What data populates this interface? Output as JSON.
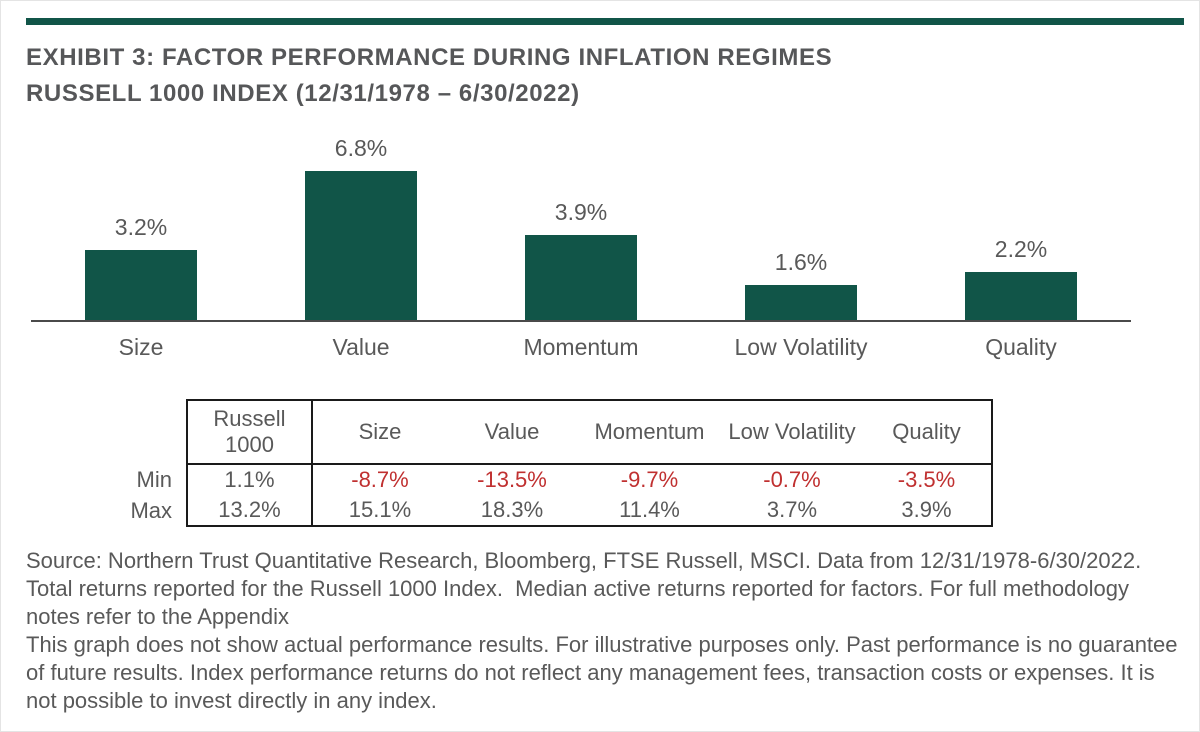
{
  "header": {
    "line1": "EXHIBIT 3: FACTOR PERFORMANCE DURING INFLATION REGIMES",
    "line2": "RUSSELL 1000 INDEX (12/31/1978 – 6/30/2022)"
  },
  "colors": {
    "accent_green": "#115548",
    "text_gray": "#595959",
    "negative_red": "#c03030"
  },
  "chart_data": [
    {
      "type": "bar",
      "title": "Factor performance during inflation regimes, Russell 1000 Index (12/31/1978 – 6/30/2022)",
      "categories": [
        "Size",
        "Value",
        "Momentum",
        "Low Volatility",
        "Quality"
      ],
      "values": [
        3.2,
        6.8,
        3.9,
        1.6,
        2.2
      ],
      "value_labels": [
        "3.2%",
        "6.8%",
        "3.9%",
        "1.6%",
        "2.2%"
      ],
      "xlabel": "",
      "ylabel": "",
      "ylim": [
        0,
        8.7
      ],
      "grid": false,
      "legend": false,
      "bar_color": "#115548"
    },
    {
      "type": "table",
      "columns": [
        "Russell 1000",
        "Size",
        "Value",
        "Momentum",
        "Low Volatility",
        "Quality"
      ],
      "row_labels": [
        "Min",
        "Max"
      ],
      "min": [
        "1.1%",
        "-8.7%",
        "-13.5%",
        "-9.7%",
        "-0.7%",
        "-3.5%"
      ],
      "max": [
        "13.2%",
        "15.1%",
        "18.3%",
        "11.4%",
        "3.7%",
        "3.9%"
      ],
      "negative_color": "#c03030"
    }
  ],
  "footnotes": {
    "source": "Source: Northern Trust Quantitative Research, Bloomberg, FTSE Russell, MSCI. Data from 12/31/1978-6/30/2022. Total returns reported for the Russell 1000 Index.  Median active returns reported for factors. For full methodology notes refer to the Appendix",
    "disclaimer": "This graph does not show actual performance results. For illustrative purposes only. Past performance is no guarantee of future results. Index performance returns do not reflect any management fees, transaction costs or expenses. It is not possible to invest directly in any index."
  }
}
